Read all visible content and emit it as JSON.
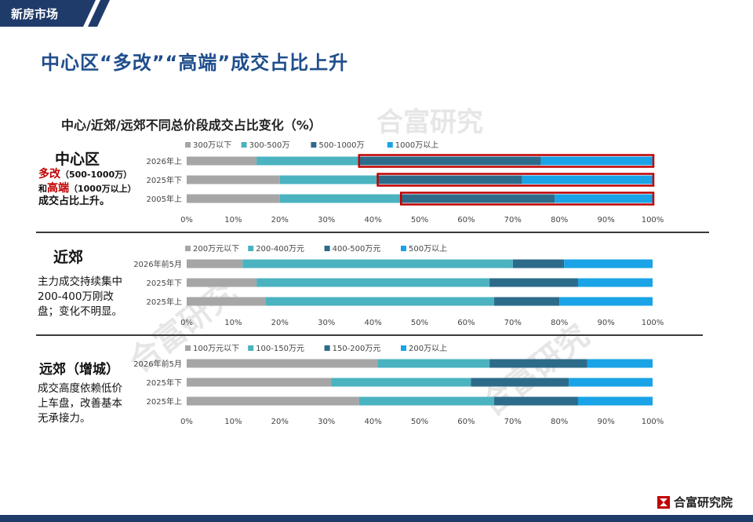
{
  "header": {
    "tag": "新房市场"
  },
  "slide_title": "中心区“多改”“高端”成交占比上升",
  "chart_title": "中心/近郊/远郊不同总价段成交占比变化（%）",
  "watermark": "合富研究",
  "brand": "合富研究院",
  "colors": {
    "navy": "#1f3b6a",
    "title": "#1f4e8c",
    "highlight": "#c00000"
  },
  "sections": {
    "center": {
      "heading": "中心区",
      "note_hl1": "多改",
      "note_l1": "（500-1000万）",
      "note_pre2": "和",
      "note_hl2": "高端",
      "note_l2": "（1000万以上）",
      "note_l3": "成交占比上升。"
    },
    "suburb": {
      "heading": "近郊",
      "note_l1": "主力成交持续集中",
      "note_l2": "200-400万刚改",
      "note_l3": "盘；变化不明显。"
    },
    "outer": {
      "heading": "远郊（增城）",
      "note_l1": "成交高度依赖低价",
      "note_l2": "上车盘，改善基本",
      "note_l3": "无承接力。"
    }
  },
  "chart_data": [
    {
      "type": "bar",
      "orientation": "horizontal-stacked",
      "categories": [
        "2026年上",
        "2025年下",
        "2005年上"
      ],
      "series": [
        {
          "name": "300万以下",
          "color": "#a6a6a6",
          "values": [
            15,
            20,
            20
          ]
        },
        {
          "name": "300-500万",
          "color": "#4bb3c0",
          "values": [
            22,
            21,
            26
          ]
        },
        {
          "name": "500-1000万",
          "color": "#2d6b8a",
          "values": [
            39,
            31,
            33
          ]
        },
        {
          "name": "1000万以上",
          "color": "#1aa3e6",
          "values": [
            24,
            28,
            21
          ]
        }
      ],
      "highlight_from": [
        37,
        41,
        46
      ],
      "xticks": [
        "0%",
        "10%",
        "20%",
        "30%",
        "40%",
        "50%",
        "60%",
        "70%",
        "80%",
        "90%",
        "100%"
      ],
      "xlim": [
        0,
        100
      ]
    },
    {
      "type": "bar",
      "orientation": "horizontal-stacked",
      "categories": [
        "2026年前5月",
        "2025年下",
        "2025年上"
      ],
      "series": [
        {
          "name": "200万元以下",
          "color": "#a6a6a6",
          "values": [
            12,
            15,
            17
          ]
        },
        {
          "name": "200-400万元",
          "color": "#4bb3c0",
          "values": [
            58,
            50,
            49
          ]
        },
        {
          "name": "400-500万元",
          "color": "#2d6b8a",
          "values": [
            11,
            19,
            14
          ]
        },
        {
          "name": "500万以上",
          "color": "#1aa3e6",
          "values": [
            19,
            16,
            20
          ]
        }
      ],
      "xticks": [
        "0%",
        "10%",
        "20%",
        "30%",
        "40%",
        "50%",
        "60%",
        "70%",
        "80%",
        "90%",
        "100%"
      ],
      "xlim": [
        0,
        100
      ]
    },
    {
      "type": "bar",
      "orientation": "horizontal-stacked",
      "categories": [
        "2026年前5月",
        "2025年下",
        "2025年上"
      ],
      "series": [
        {
          "name": "100万元以下",
          "color": "#a6a6a6",
          "values": [
            41,
            31,
            37
          ]
        },
        {
          "name": "100-150万元",
          "color": "#4bb3c0",
          "values": [
            24,
            30,
            29
          ]
        },
        {
          "name": "150-200万元",
          "color": "#2d6b8a",
          "values": [
            21,
            21,
            18
          ]
        },
        {
          "name": "200万以上",
          "color": "#1aa3e6",
          "values": [
            14,
            18,
            16
          ]
        }
      ],
      "xticks": [
        "0%",
        "10%",
        "20%",
        "30%",
        "40%",
        "50%",
        "60%",
        "70%",
        "80%",
        "90%",
        "100%"
      ],
      "xlim": [
        0,
        100
      ]
    }
  ]
}
